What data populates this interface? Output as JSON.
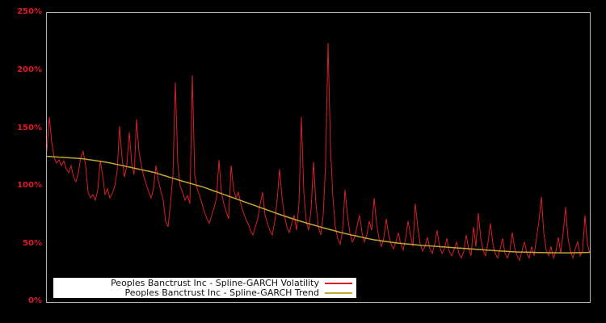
{
  "colors": {
    "background": "#000000",
    "plot_border": "#b5b5b5",
    "tick_label": "#e0192b",
    "volatility_line": "#d62027",
    "trend_line": "#c7a52f",
    "legend_background": "#ffffff",
    "legend_text": "#111111"
  },
  "axis": {
    "tick_labels": [
      "250%",
      "200%",
      "150%",
      "100%",
      "50%",
      "0%"
    ]
  },
  "legend": {
    "items": [
      {
        "label": "Peoples Banctrust Inc - Spline-GARCH Volatility",
        "color": "#d62027"
      },
      {
        "label": "Peoples Banctrust Inc - Spline-GARCH Trend",
        "color": "#c7a52f"
      }
    ]
  },
  "chart_data": {
    "type": "line",
    "title": "",
    "xlabel": "",
    "ylabel": "",
    "ylim": [
      0,
      250
    ],
    "y_tick_values": [
      0,
      50,
      100,
      150,
      200,
      250
    ],
    "y_tick_format": "percent",
    "grid": false,
    "legend_position": "bottom-left",
    "x_axis_labels_visible": false,
    "series": [
      {
        "name": "Peoples Banctrust Inc - Spline-GARCH Volatility",
        "color": "#d62027",
        "stroke_width": 1,
        "values": [
          130,
          160,
          138,
          125,
          120,
          123,
          118,
          122,
          115,
          112,
          118,
          108,
          104,
          112,
          125,
          130,
          118,
          95,
          90,
          93,
          88,
          97,
          122,
          110,
          93,
          98,
          90,
          94,
          100,
          113,
          152,
          125,
          108,
          118,
          147,
          120,
          110,
          158,
          130,
          118,
          108,
          102,
          95,
          90,
          98,
          118,
          105,
          96,
          88,
          70,
          65,
          85,
          110,
          190,
          120,
          100,
          95,
          88,
          92,
          85,
          196,
          110,
          98,
          92,
          85,
          78,
          72,
          68,
          75,
          82,
          90,
          123,
          95,
          85,
          78,
          72,
          118,
          98,
          90,
          95,
          85,
          78,
          72,
          68,
          62,
          58,
          65,
          72,
          85,
          95,
          75,
          68,
          62,
          58,
          70,
          88,
          115,
          90,
          75,
          65,
          60,
          68,
          75,
          62,
          85,
          160,
          95,
          70,
          62,
          80,
          121,
          85,
          65,
          58,
          75,
          120,
          224,
          135,
          90,
          65,
          55,
          50,
          62,
          97,
          75,
          60,
          52,
          56,
          66,
          75,
          60,
          52,
          58,
          70,
          62,
          90,
          68,
          55,
          48,
          55,
          72,
          58,
          50,
          46,
          52,
          60,
          50,
          45,
          55,
          70,
          58,
          48,
          85,
          65,
          50,
          44,
          48,
          56,
          46,
          42,
          50,
          62,
          48,
          42,
          46,
          55,
          44,
          40,
          45,
          52,
          42,
          38,
          44,
          58,
          46,
          40,
          65,
          48,
          77,
          55,
          44,
          40,
          52,
          68,
          50,
          42,
          38,
          46,
          55,
          42,
          38,
          44,
          60,
          46,
          40,
          36,
          44,
          52,
          42,
          38,
          48,
          40,
          55,
          70,
          91,
          60,
          45,
          40,
          48,
          38,
          44,
          56,
          42,
          60,
          82,
          55,
          44,
          38,
          46,
          52,
          40,
          44,
          75,
          50,
          42
        ]
      },
      {
        "name": "Peoples Banctrust Inc - Spline-GARCH Trend",
        "color": "#c7a52f",
        "stroke_width": 1.5,
        "values": [
          126,
          125.9,
          125.7,
          125.6,
          125.4,
          125.3,
          125.2,
          125,
          124.9,
          124.7,
          124.6,
          124.5,
          124.3,
          124.2,
          124,
          123.8,
          123.5,
          123.2,
          122.9,
          122.6,
          122.3,
          122,
          121.7,
          121.4,
          121.1,
          120.7,
          120.3,
          119.8,
          119.4,
          118.9,
          118.5,
          118,
          117.6,
          117.1,
          116.7,
          116.2,
          115.8,
          115.3,
          114.9,
          114.4,
          114,
          113.5,
          113.1,
          112.6,
          112.2,
          111.6,
          110.9,
          110.3,
          109.6,
          109,
          108.3,
          107.7,
          107,
          106.4,
          105.7,
          105.1,
          104.5,
          103.9,
          103.3,
          102.7,
          102.1,
          101.5,
          100.9,
          100.3,
          99.7,
          99,
          98.3,
          97.5,
          96.8,
          96,
          95.3,
          94.5,
          93.8,
          93,
          92.3,
          91.5,
          90.8,
          90,
          89.3,
          88.5,
          87.8,
          87,
          86.3,
          85.5,
          84.8,
          84,
          83.3,
          82.5,
          81.8,
          81,
          80.3,
          79.5,
          78.8,
          78,
          77.3,
          76.5,
          75.8,
          75.1,
          74.4,
          73.7,
          73,
          72.3,
          71.6,
          70.9,
          70.2,
          69.6,
          69,
          68.4,
          67.8,
          67.2,
          66.6,
          66,
          65.4,
          64.8,
          64.2,
          63.6,
          63.1,
          62.5,
          62,
          61.4,
          60.9,
          60.3,
          59.8,
          59.2,
          58.7,
          58.2,
          57.8,
          57.3,
          56.9,
          56.4,
          56,
          55.5,
          55.1,
          54.6,
          54.2,
          53.8,
          53.5,
          53.2,
          52.9,
          52.6,
          52.3,
          52,
          51.7,
          51.4,
          51.1,
          50.9,
          50.7,
          50.5,
          50.3,
          50.1,
          49.9,
          49.7,
          49.5,
          49.3,
          49.1,
          48.9,
          48.8,
          48.6,
          48.5,
          48.3,
          48.2,
          48,
          47.9,
          47.7,
          47.6,
          47.4,
          47.3,
          47.1,
          47,
          46.8,
          46.7,
          46.5,
          46.4,
          46.2,
          46.1,
          45.9,
          45.8,
          45.6,
          45.5,
          45.3,
          45.2,
          45,
          44.9,
          44.7,
          44.6,
          44.4,
          44.3,
          44.2,
          44,
          43.9,
          43.8,
          43.6,
          43.5,
          43.4,
          43.2,
          43.2,
          43.2,
          43.1,
          43.1,
          43,
          43,
          42.9,
          42.9,
          42.8,
          42.8,
          42.7,
          42.7,
          42.7,
          42.6,
          42.6,
          42.6,
          42.5,
          42.5,
          42.5,
          42.5,
          42.5,
          42.5,
          42.6,
          42.6,
          42.7,
          42.7,
          42.8,
          42.8,
          42.9,
          43
        ]
      }
    ]
  }
}
